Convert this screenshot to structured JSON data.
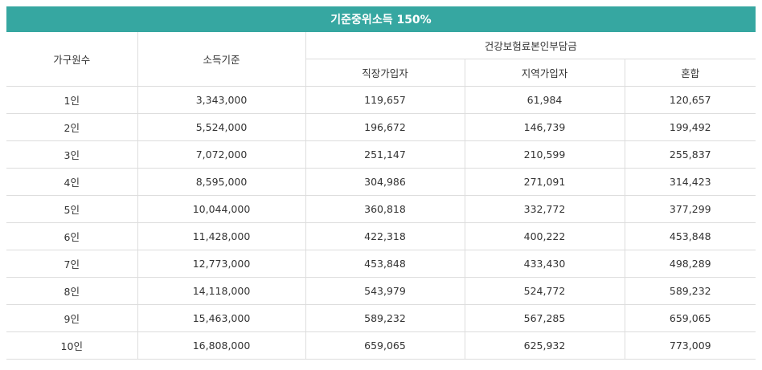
{
  "title": "기준중위소득 150%",
  "headers": {
    "household": "가구원수",
    "income": "소득기준",
    "premium_group": "건강보험료본인부담금",
    "employee": "직장가입자",
    "regional": "지역가입자",
    "mixed": "혼합"
  },
  "rows": [
    {
      "household": "1인",
      "income": "3,343,000",
      "employee": "119,657",
      "regional": "61,984",
      "mixed": "120,657"
    },
    {
      "household": "2인",
      "income": "5,524,000",
      "employee": "196,672",
      "regional": "146,739",
      "mixed": "199,492"
    },
    {
      "household": "3인",
      "income": "7,072,000",
      "employee": "251,147",
      "regional": "210,599",
      "mixed": "255,837"
    },
    {
      "household": "4인",
      "income": "8,595,000",
      "employee": "304,986",
      "regional": "271,091",
      "mixed": "314,423"
    },
    {
      "household": "5인",
      "income": "10,044,000",
      "employee": "360,818",
      "regional": "332,772",
      "mixed": "377,299"
    },
    {
      "household": "6인",
      "income": "11,428,000",
      "employee": "422,318",
      "regional": "400,222",
      "mixed": "453,848"
    },
    {
      "household": "7인",
      "income": "12,773,000",
      "employee": "453,848",
      "regional": "433,430",
      "mixed": "498,289"
    },
    {
      "household": "8인",
      "income": "14,118,000",
      "employee": "543,979",
      "regional": "524,772",
      "mixed": "589,232"
    },
    {
      "household": "9인",
      "income": "15,463,000",
      "employee": "589,232",
      "regional": "567,285",
      "mixed": "659,065"
    },
    {
      "household": "10인",
      "income": "16,808,000",
      "employee": "659,065",
      "regional": "625,932",
      "mixed": "773,009"
    }
  ],
  "colors": {
    "title_bg": "#36a7a1",
    "title_text": "#ffffff",
    "border": "#dddddd"
  }
}
